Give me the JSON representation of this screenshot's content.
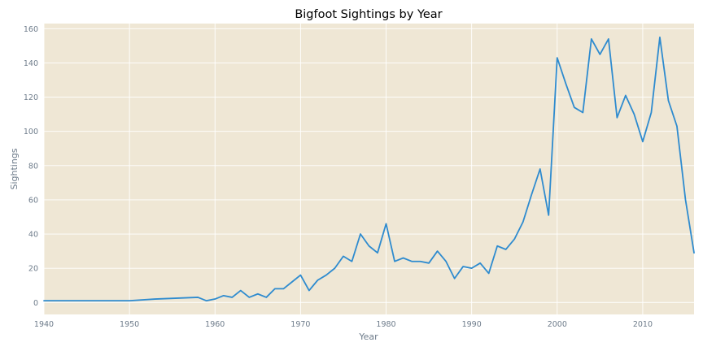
{
  "chart_data": {
    "type": "line",
    "title": "Bigfoot Sightings by Year",
    "xlabel": "Year",
    "ylabel": "Sightings",
    "xlim": [
      1940,
      2016
    ],
    "ylim": [
      -7,
      163
    ],
    "xticks": [
      1940,
      1950,
      1960,
      1970,
      1980,
      1990,
      2000,
      2010
    ],
    "yticks": [
      0,
      20,
      40,
      60,
      80,
      100,
      120,
      140,
      160
    ],
    "grid": true,
    "colors": {
      "background": "#efe7d5",
      "line": "#2e8bcf",
      "grid": "#ffffff"
    },
    "series": [
      {
        "x": [
          1940,
          1950,
          1953,
          1958,
          1959,
          1960,
          1961,
          1962,
          1963,
          1964,
          1965,
          1966,
          1967,
          1968,
          1969,
          1970,
          1971,
          1972,
          1973,
          1974,
          1975,
          1976,
          1977,
          1978,
          1979,
          1980,
          1981,
          1982,
          1983,
          1984,
          1985,
          1986,
          1987,
          1988,
          1989,
          1990,
          1991,
          1992,
          1993,
          1994,
          1995,
          1996,
          1997,
          1998,
          1999,
          2000,
          2001,
          2002,
          2003,
          2004,
          2005,
          2006,
          2007,
          2008,
          2009,
          2010,
          2011,
          2012,
          2013,
          2014,
          2015,
          2016
        ],
        "y": [
          1,
          1,
          2,
          3,
          1,
          2,
          4,
          3,
          7,
          3,
          5,
          3,
          8,
          8,
          12,
          16,
          7,
          13,
          16,
          20,
          27,
          24,
          40,
          33,
          29,
          46,
          24,
          26,
          24,
          24,
          23,
          30,
          24,
          14,
          21,
          20,
          23,
          17,
          33,
          31,
          37,
          47,
          63,
          78,
          51,
          143,
          128,
          114,
          111,
          154,
          145,
          154,
          108,
          121,
          110,
          94,
          111,
          155,
          118,
          103,
          60,
          29
        ]
      }
    ]
  }
}
